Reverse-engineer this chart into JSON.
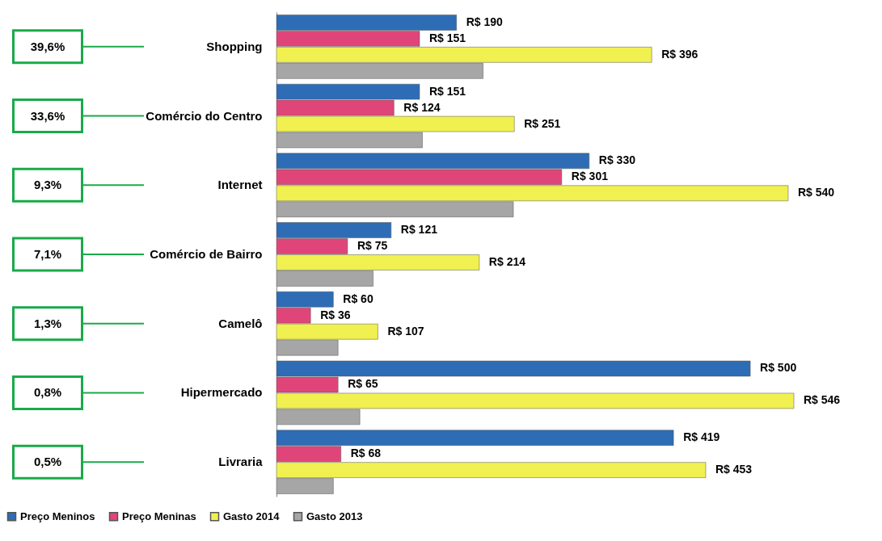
{
  "chart_data": {
    "type": "bar",
    "orientation": "horizontal",
    "categories": [
      "Shopping",
      "Comércio do Centro",
      "Internet",
      "Comércio de Bairro",
      "Camelô",
      "Hipermercado",
      "Livraria"
    ],
    "legend": "bottom",
    "grid": false,
    "series": [
      {
        "name": "Preço Meninos",
        "color": "#2e6db5",
        "values": [
          190,
          151,
          330,
          121,
          60,
          500,
          419
        ],
        "value_labels": [
          "R$ 190",
          "R$ 151",
          "R$ 330",
          "R$ 121",
          "R$ 60",
          "R$ 500",
          "R$ 419"
        ]
      },
      {
        "name": "Preço Meninas",
        "color": "#e0457a",
        "values": [
          151,
          124,
          301,
          75,
          36,
          65,
          68
        ],
        "value_labels": [
          "R$ 151",
          "R$ 124",
          "R$ 301",
          "R$ 75",
          "R$ 36",
          "R$ 65",
          "R$ 68"
        ]
      },
      {
        "name": "Gasto 2014",
        "color": "#f0f050",
        "values": [
          396,
          251,
          540,
          214,
          107,
          546,
          453
        ],
        "value_labels": [
          "R$ 396",
          "R$ 251",
          "R$ 540",
          "R$ 214",
          "R$ 107",
          "R$ 546",
          "R$ 453"
        ]
      },
      {
        "name": "Gasto 2013",
        "color": "#a6a6a6",
        "values": [
          218,
          154,
          250,
          102,
          65,
          88,
          60
        ]
      }
    ],
    "annotations": [
      "39,6%",
      "33,6%",
      "9,3%",
      "7,1%",
      "1,3%",
      "0,8%",
      "0,5%"
    ]
  }
}
